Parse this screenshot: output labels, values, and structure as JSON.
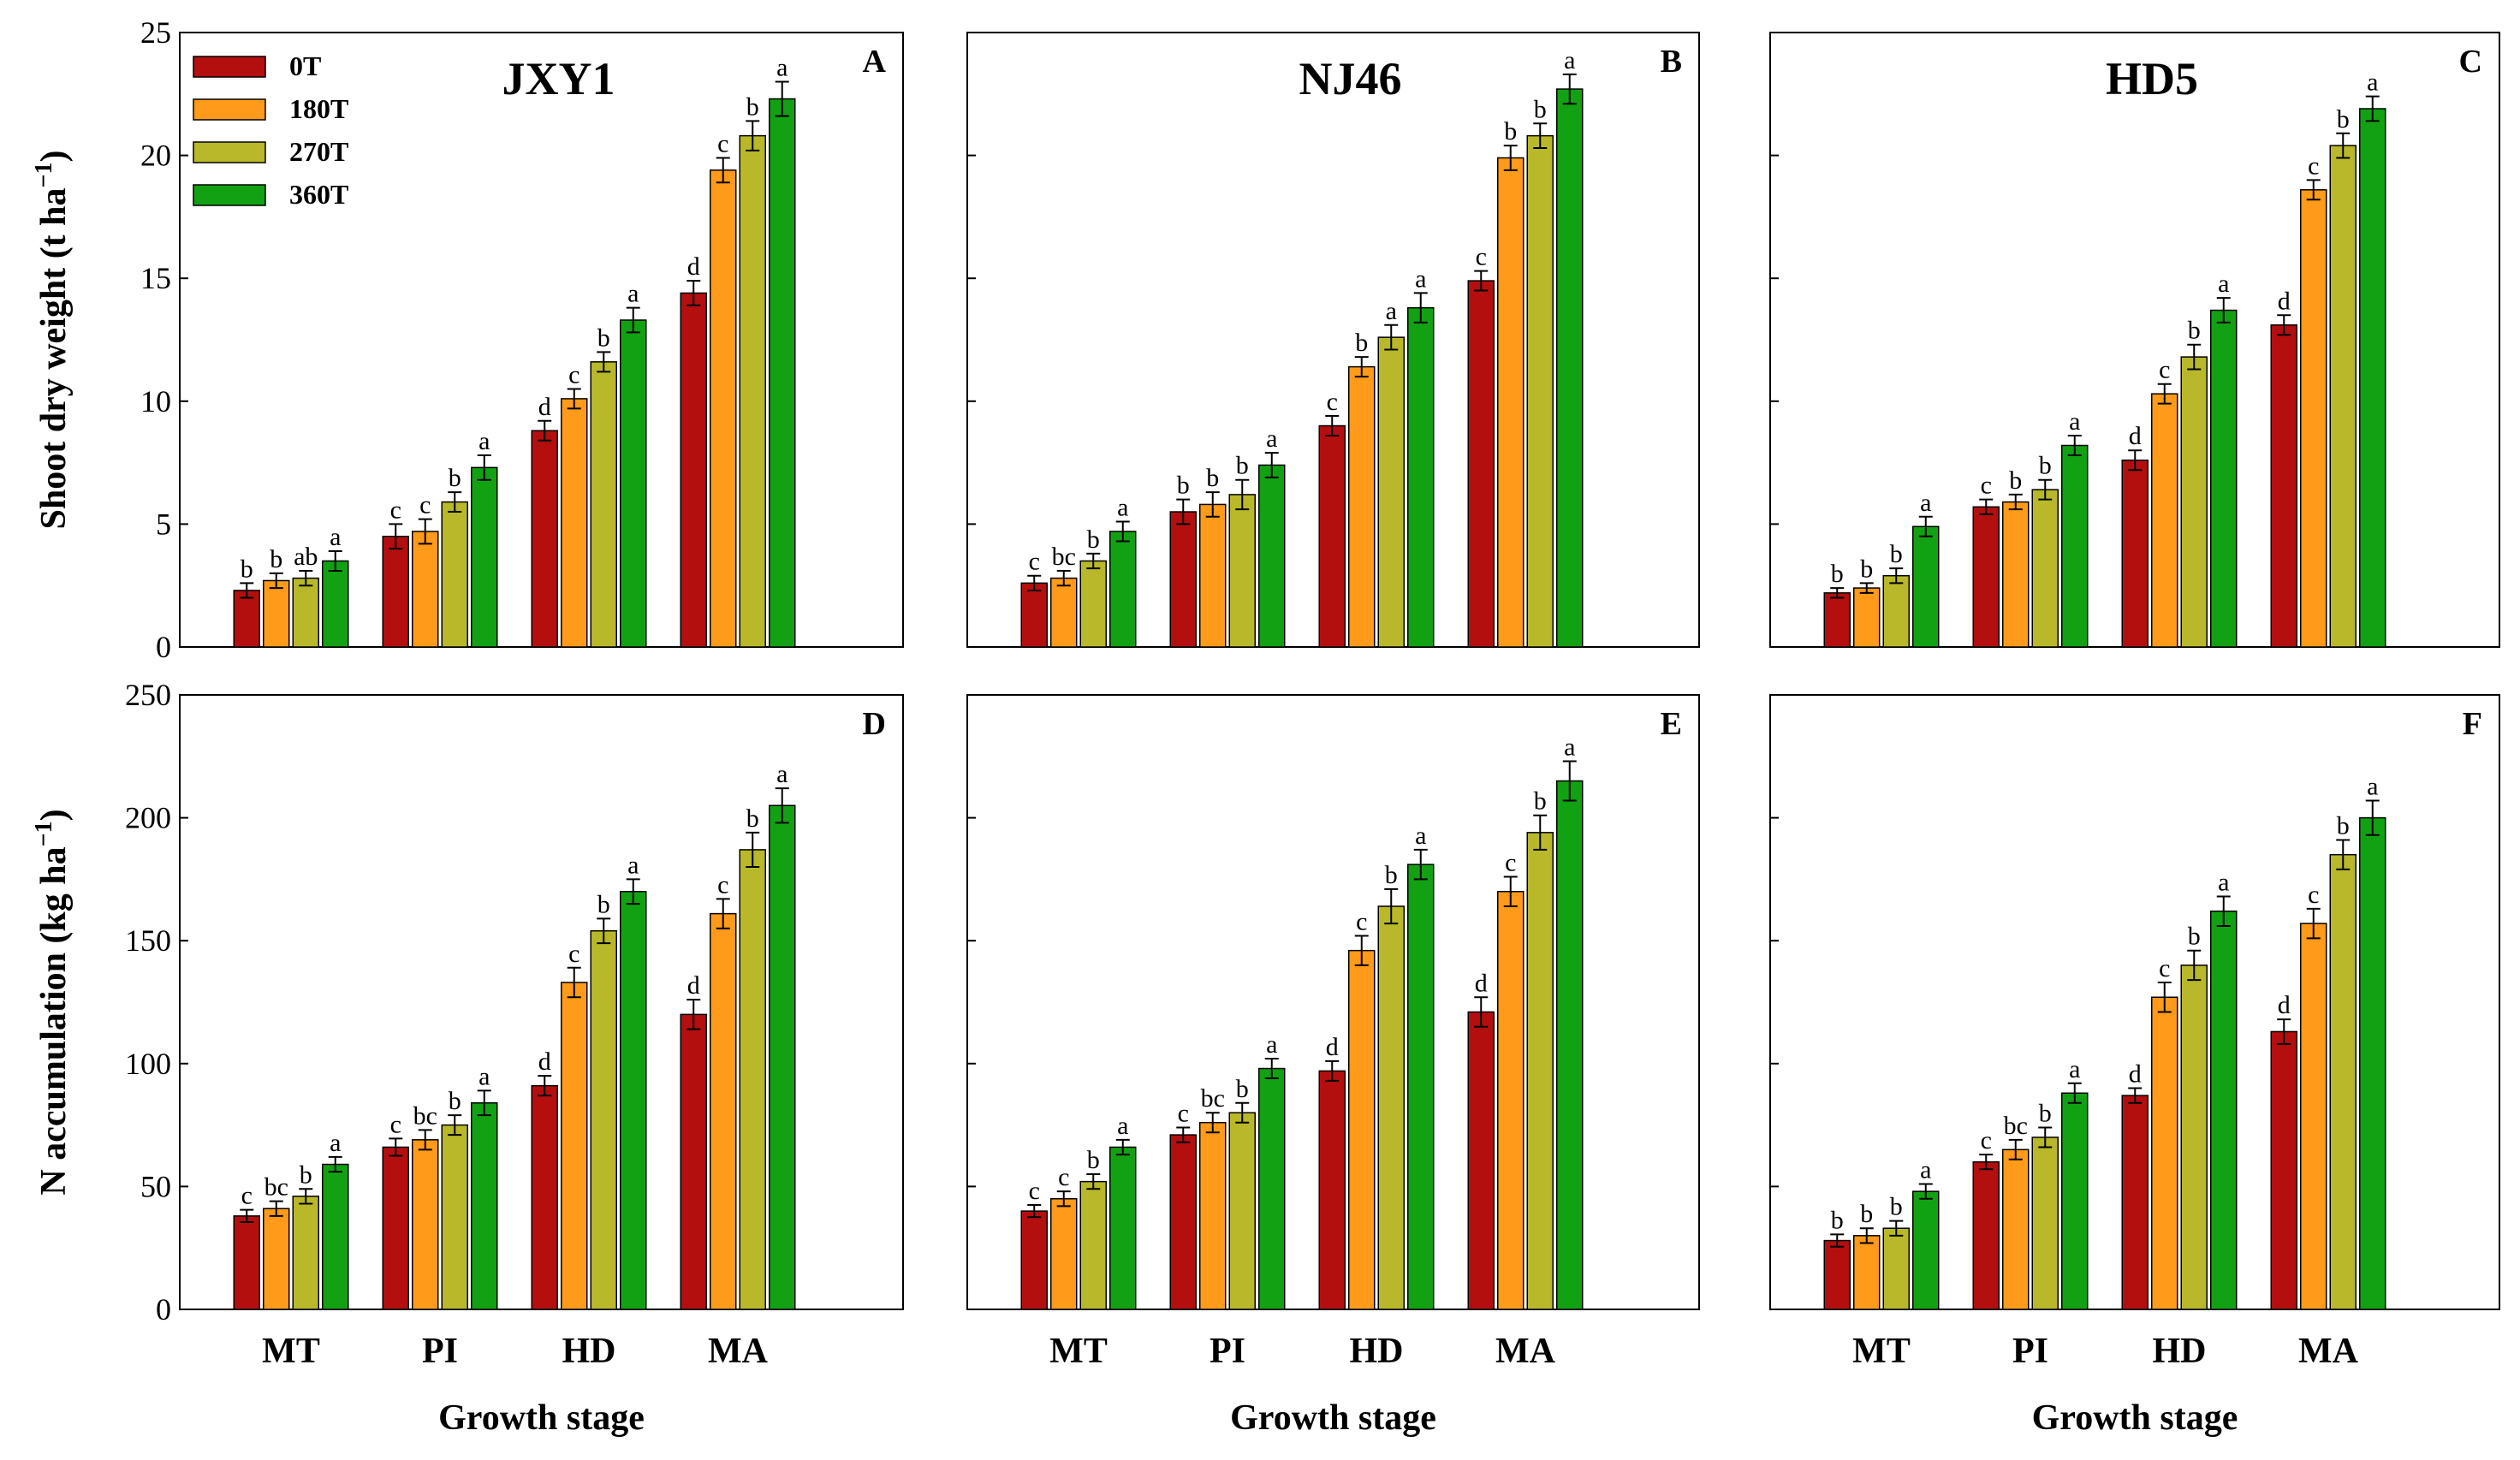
{
  "chart_data": {
    "type": "bar",
    "categories": [
      "MT",
      "PI",
      "HD",
      "MA"
    ],
    "series_names": [
      "0T",
      "180T",
      "270T",
      "360T"
    ],
    "colors": [
      "#b30f0f",
      "#ff9a1a",
      "#b8b82a",
      "#12a112"
    ],
    "xlabel": "Growth stage",
    "rows": [
      {
        "ylabel_main": "Shoot dry weight (t ha",
        "ylabel_sup": "−1",
        "ylabel_close": ")",
        "ylim": [
          0,
          25
        ],
        "yticks": [
          0,
          5,
          10,
          15,
          20,
          25
        ]
      },
      {
        "ylabel_main": "N accumulation (kg ha",
        "ylabel_sup": "−1",
        "ylabel_close": ")",
        "ylim": [
          0,
          250
        ],
        "yticks": [
          0,
          50,
          100,
          150,
          200,
          250
        ]
      }
    ],
    "panels": [
      {
        "label": "A",
        "title": "JXY1",
        "row": 0,
        "col": 0,
        "values": [
          [
            2.3,
            2.7,
            2.8,
            3.5
          ],
          [
            4.5,
            4.7,
            5.9,
            7.3
          ],
          [
            8.8,
            10.1,
            11.6,
            13.3
          ],
          [
            14.4,
            19.4,
            20.8,
            22.3
          ]
        ],
        "errors": [
          [
            0.3,
            0.3,
            0.3,
            0.4
          ],
          [
            0.5,
            0.5,
            0.4,
            0.5
          ],
          [
            0.4,
            0.4,
            0.4,
            0.5
          ],
          [
            0.5,
            0.5,
            0.6,
            0.7
          ]
        ],
        "letters": [
          [
            "b",
            "b",
            "ab",
            "a"
          ],
          [
            "c",
            "c",
            "b",
            "a"
          ],
          [
            "d",
            "c",
            "b",
            "a"
          ],
          [
            "d",
            "c",
            "b",
            "a"
          ]
        ]
      },
      {
        "label": "B",
        "title": "NJ46",
        "row": 0,
        "col": 1,
        "values": [
          [
            2.6,
            2.8,
            3.5,
            4.7
          ],
          [
            5.5,
            5.8,
            6.2,
            7.4
          ],
          [
            9.0,
            11.4,
            12.6,
            13.8
          ],
          [
            14.9,
            19.9,
            20.8,
            22.7
          ]
        ],
        "errors": [
          [
            0.3,
            0.3,
            0.3,
            0.4
          ],
          [
            0.5,
            0.5,
            0.6,
            0.5
          ],
          [
            0.4,
            0.4,
            0.5,
            0.6
          ],
          [
            0.4,
            0.5,
            0.5,
            0.6
          ]
        ],
        "letters": [
          [
            "c",
            "bc",
            "b",
            "a"
          ],
          [
            "b",
            "b",
            "b",
            "a"
          ],
          [
            "c",
            "b",
            "a",
            "a"
          ],
          [
            "c",
            "b",
            "b",
            "a"
          ]
        ]
      },
      {
        "label": "C",
        "title": "HD5",
        "row": 0,
        "col": 2,
        "values": [
          [
            2.2,
            2.4,
            2.9,
            4.9
          ],
          [
            5.7,
            5.9,
            6.4,
            8.2
          ],
          [
            7.6,
            10.3,
            11.8,
            13.7
          ],
          [
            13.1,
            18.6,
            20.4,
            21.9
          ]
        ],
        "errors": [
          [
            0.2,
            0.2,
            0.3,
            0.4
          ],
          [
            0.3,
            0.3,
            0.4,
            0.4
          ],
          [
            0.4,
            0.4,
            0.5,
            0.5
          ],
          [
            0.4,
            0.4,
            0.5,
            0.5
          ]
        ],
        "letters": [
          [
            "b",
            "b",
            "b",
            "a"
          ],
          [
            "c",
            "b",
            "b",
            "a"
          ],
          [
            "d",
            "c",
            "b",
            "a"
          ],
          [
            "d",
            "c",
            "b",
            "a"
          ]
        ]
      },
      {
        "label": "D",
        "title": "",
        "row": 1,
        "col": 0,
        "values": [
          [
            38,
            41,
            46,
            59
          ],
          [
            66,
            69,
            75,
            84
          ],
          [
            91,
            133,
            154,
            170
          ],
          [
            120,
            161,
            187,
            205
          ]
        ],
        "errors": [
          [
            2.5,
            3,
            3,
            3
          ],
          [
            3.5,
            4,
            4,
            5
          ],
          [
            4,
            6,
            5,
            5
          ],
          [
            6,
            6,
            7,
            7
          ]
        ],
        "letters": [
          [
            "c",
            "bc",
            "b",
            "a"
          ],
          [
            "c",
            "bc",
            "b",
            "a"
          ],
          [
            "d",
            "c",
            "b",
            "a"
          ],
          [
            "d",
            "c",
            "b",
            "a"
          ]
        ]
      },
      {
        "label": "E",
        "title": "",
        "row": 1,
        "col": 1,
        "values": [
          [
            40,
            45,
            52,
            66
          ],
          [
            71,
            76,
            80,
            98
          ],
          [
            97,
            146,
            164,
            181
          ],
          [
            121,
            170,
            194,
            215
          ]
        ],
        "errors": [
          [
            2.5,
            3,
            3,
            3
          ],
          [
            3,
            4,
            4,
            4
          ],
          [
            4,
            6,
            7,
            6
          ],
          [
            6,
            6,
            7,
            8
          ]
        ],
        "letters": [
          [
            "c",
            "c",
            "b",
            "a"
          ],
          [
            "c",
            "bc",
            "b",
            "a"
          ],
          [
            "d",
            "c",
            "b",
            "a"
          ],
          [
            "d",
            "c",
            "b",
            "a"
          ]
        ]
      },
      {
        "label": "F",
        "title": "",
        "row": 1,
        "col": 2,
        "values": [
          [
            28,
            30,
            33,
            48
          ],
          [
            60,
            65,
            70,
            88
          ],
          [
            87,
            127,
            140,
            162
          ],
          [
            113,
            157,
            185,
            200
          ]
        ],
        "errors": [
          [
            2.5,
            3,
            3,
            3
          ],
          [
            3,
            4,
            4,
            4
          ],
          [
            3,
            6,
            6,
            6
          ],
          [
            5,
            6,
            6,
            7
          ]
        ],
        "letters": [
          [
            "b",
            "b",
            "b",
            "a"
          ],
          [
            "c",
            "bc",
            "b",
            "a"
          ],
          [
            "d",
            "c",
            "b",
            "a"
          ],
          [
            "d",
            "c",
            "b",
            "a"
          ]
        ]
      }
    ]
  }
}
